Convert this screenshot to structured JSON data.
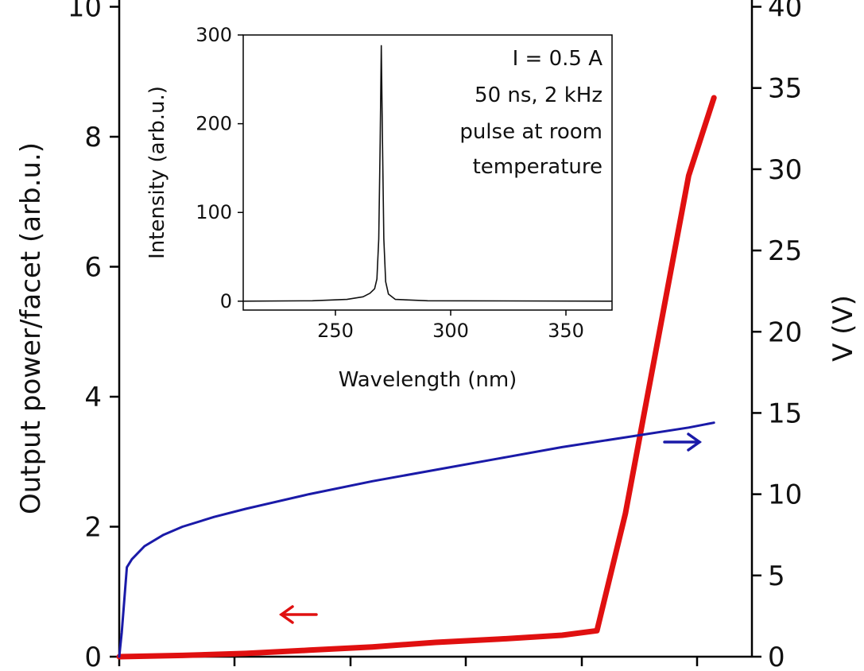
{
  "chart_data": [
    {
      "type": "line",
      "panel": "main",
      "title": "",
      "xlabel": "",
      "ylabel_left": "Output power/facet (arb.u.)",
      "ylabel_right": "V (V)",
      "xlim": [
        0,
        1
      ],
      "ylim_left": [
        0,
        10
      ],
      "ylim_right": [
        0,
        40
      ],
      "x_tick_labels": [],
      "y_left_ticks": [
        0,
        2,
        4,
        6,
        8,
        10
      ],
      "y_left_tick_labels": [
        "0",
        "2",
        "4",
        "6",
        "8",
        "10"
      ],
      "y_right_ticks": [
        0,
        5,
        10,
        15,
        20,
        25,
        30,
        35,
        40
      ],
      "y_right_tick_labels": [
        "0",
        "5",
        "10",
        "15",
        "20",
        "25",
        "30",
        "35",
        "40"
      ],
      "grid": false,
      "series": [
        {
          "axis": "left",
          "color": "#e01010",
          "x": [
            0.0,
            0.1,
            0.2,
            0.3,
            0.4,
            0.5,
            0.6,
            0.7,
            0.755,
            0.8,
            0.85,
            0.9,
            0.94
          ],
          "values": [
            0.0,
            0.02,
            0.05,
            0.1,
            0.15,
            0.22,
            0.27,
            0.33,
            0.4,
            2.2,
            4.8,
            7.4,
            8.6
          ]
        },
        {
          "axis": "right",
          "color": "#1a1aa8",
          "x": [
            0.0,
            0.004,
            0.008,
            0.012,
            0.02,
            0.04,
            0.07,
            0.1,
            0.15,
            0.2,
            0.3,
            0.4,
            0.5,
            0.6,
            0.7,
            0.8,
            0.9,
            0.94
          ],
          "values": [
            0.0,
            1.5,
            3.5,
            5.5,
            6.0,
            6.8,
            7.5,
            8.0,
            8.6,
            9.1,
            10.0,
            10.8,
            11.5,
            12.2,
            12.9,
            13.5,
            14.1,
            14.4
          ]
        }
      ],
      "annotations": [
        {
          "text": "←",
          "color": "#e01010",
          "points_to": "left axis"
        },
        {
          "text": "→",
          "color": "#1a1aa8",
          "points_to": "right axis"
        }
      ]
    },
    {
      "type": "line",
      "panel": "inset",
      "title": "",
      "xlabel": "Wavelength (nm)",
      "ylabel": "Intensity (arb.u.)",
      "xlim": [
        210,
        370
      ],
      "ylim": [
        -10,
        300
      ],
      "x_ticks": [
        250,
        300,
        350
      ],
      "x_tick_labels": [
        "250",
        "300",
        "350"
      ],
      "y_ticks": [
        0,
        100,
        200,
        300
      ],
      "y_tick_labels": [
        "0",
        "100",
        "200",
        "300"
      ],
      "grid": false,
      "annotation_lines": [
        "I = 0.5 A",
        "50 ns, 2 kHz",
        "pulse at room",
        "temperature"
      ],
      "series": [
        {
          "color": "#111111",
          "x": [
            210,
            240,
            255,
            262,
            265,
            267,
            268,
            268.8,
            269.4,
            269.9,
            270.4,
            271.0,
            271.8,
            273,
            276,
            290,
            370
          ],
          "values": [
            0,
            0.5,
            2,
            5,
            9,
            14,
            25,
            70,
            180,
            288,
            180,
            70,
            22,
            8,
            2,
            0.5,
            0
          ]
        }
      ]
    }
  ]
}
